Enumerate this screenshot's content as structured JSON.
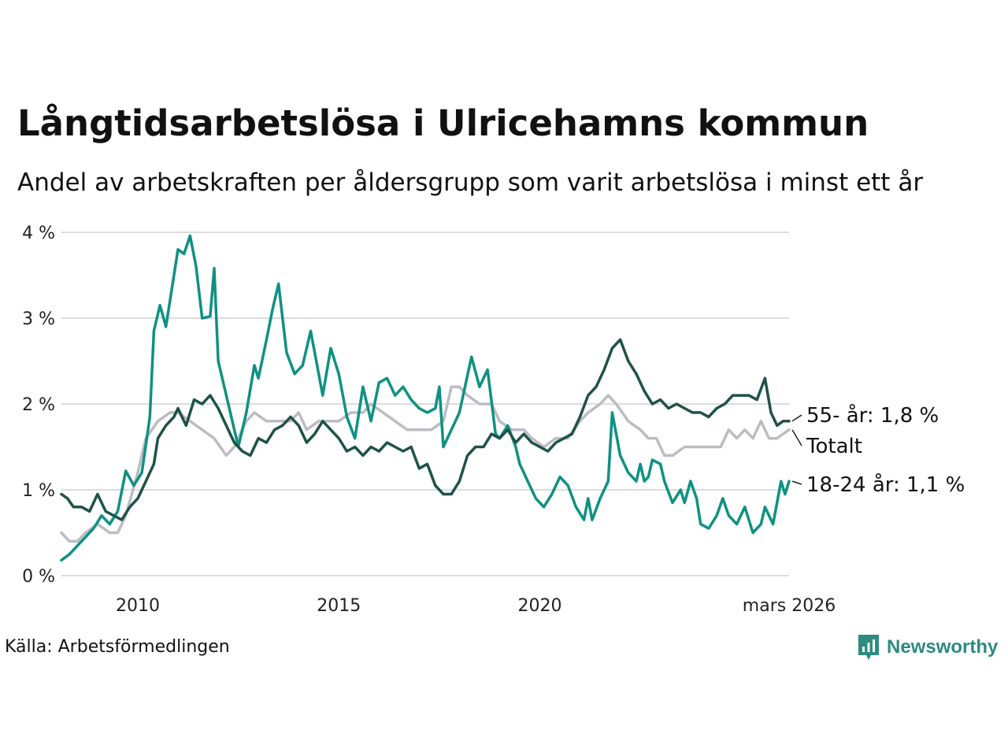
{
  "header": {
    "title": "Långtidsarbetslösa i Ulricehamns kommun",
    "subtitle": "Andel av arbetskraften per åldersgrupp som varit arbetslösa i minst ett år"
  },
  "footer": {
    "source": "Källa: Arbetsförmedlingen",
    "brand": "Newsworthy"
  },
  "chart_data": {
    "type": "line",
    "title": "Långtidsarbetslösa i Ulricehamns kommun",
    "subtitle": "Andel av arbetskraften per åldersgrupp som varit arbetslösa i minst ett år",
    "xlabel": "",
    "ylabel": "",
    "x_range": [
      2008.1,
      2026.2
    ],
    "ylim": [
      0,
      4
    ],
    "y_ticks": [
      0,
      1,
      2,
      3,
      4
    ],
    "y_tick_labels": [
      "0 %",
      "1 %",
      "2 %",
      "3 %",
      "4 %"
    ],
    "x_ticks": [
      2010,
      2015,
      2020,
      2026.2
    ],
    "x_tick_labels": [
      "2010",
      "2015",
      "2020",
      "mars 2026"
    ],
    "grid": true,
    "series": [
      {
        "name": "Totalt",
        "label": "Totalt",
        "color": "#bdbcc4",
        "points": [
          [
            2008.1,
            0.5
          ],
          [
            2008.3,
            0.4
          ],
          [
            2008.5,
            0.4
          ],
          [
            2008.7,
            0.5
          ],
          [
            2009.0,
            0.6
          ],
          [
            2009.3,
            0.5
          ],
          [
            2009.5,
            0.5
          ],
          [
            2009.7,
            0.7
          ],
          [
            2010.0,
            1.2
          ],
          [
            2010.2,
            1.6
          ],
          [
            2010.5,
            1.8
          ],
          [
            2010.8,
            1.9
          ],
          [
            2011.0,
            1.9
          ],
          [
            2011.3,
            1.8
          ],
          [
            2011.6,
            1.7
          ],
          [
            2011.9,
            1.6
          ],
          [
            2012.2,
            1.4
          ],
          [
            2012.4,
            1.5
          ],
          [
            2012.7,
            1.8
          ],
          [
            2012.9,
            1.9
          ],
          [
            2013.2,
            1.8
          ],
          [
            2013.5,
            1.8
          ],
          [
            2013.8,
            1.8
          ],
          [
            2014.0,
            1.9
          ],
          [
            2014.2,
            1.7
          ],
          [
            2014.5,
            1.8
          ],
          [
            2014.8,
            1.8
          ],
          [
            2015.0,
            1.8
          ],
          [
            2015.3,
            1.9
          ],
          [
            2015.6,
            1.9
          ],
          [
            2015.8,
            2.0
          ],
          [
            2016.1,
            1.9
          ],
          [
            2016.4,
            1.8
          ],
          [
            2016.7,
            1.7
          ],
          [
            2017.0,
            1.7
          ],
          [
            2017.3,
            1.7
          ],
          [
            2017.6,
            1.8
          ],
          [
            2017.8,
            2.2
          ],
          [
            2018.0,
            2.2
          ],
          [
            2018.2,
            2.1
          ],
          [
            2018.5,
            2.0
          ],
          [
            2018.8,
            2.0
          ],
          [
            2019.0,
            1.8
          ],
          [
            2019.3,
            1.7
          ],
          [
            2019.6,
            1.7
          ],
          [
            2019.8,
            1.6
          ],
          [
            2020.1,
            1.5
          ],
          [
            2020.4,
            1.6
          ],
          [
            2020.7,
            1.6
          ],
          [
            2021.0,
            1.8
          ],
          [
            2021.2,
            1.9
          ],
          [
            2021.5,
            2.0
          ],
          [
            2021.7,
            2.1
          ],
          [
            2021.9,
            2.0
          ],
          [
            2022.2,
            1.8
          ],
          [
            2022.5,
            1.7
          ],
          [
            2022.7,
            1.6
          ],
          [
            2022.9,
            1.6
          ],
          [
            2023.1,
            1.4
          ],
          [
            2023.3,
            1.4
          ],
          [
            2023.6,
            1.5
          ],
          [
            2023.9,
            1.5
          ],
          [
            2024.2,
            1.5
          ],
          [
            2024.5,
            1.5
          ],
          [
            2024.7,
            1.7
          ],
          [
            2024.9,
            1.6
          ],
          [
            2025.1,
            1.7
          ],
          [
            2025.3,
            1.6
          ],
          [
            2025.5,
            1.8
          ],
          [
            2025.7,
            1.6
          ],
          [
            2025.9,
            1.6
          ],
          [
            2026.2,
            1.7
          ]
        ]
      },
      {
        "name": "18-24 år",
        "label": "18-24 år: 1,1 %",
        "color": "#0f9182",
        "points": [
          [
            2008.1,
            0.18
          ],
          [
            2008.3,
            0.25
          ],
          [
            2008.6,
            0.4
          ],
          [
            2008.9,
            0.55
          ],
          [
            2009.1,
            0.7
          ],
          [
            2009.3,
            0.6
          ],
          [
            2009.5,
            0.75
          ],
          [
            2009.7,
            1.22
          ],
          [
            2009.9,
            1.05
          ],
          [
            2010.1,
            1.2
          ],
          [
            2010.3,
            1.85
          ],
          [
            2010.4,
            2.85
          ],
          [
            2010.55,
            3.15
          ],
          [
            2010.7,
            2.9
          ],
          [
            2010.8,
            3.2
          ],
          [
            2011.0,
            3.8
          ],
          [
            2011.15,
            3.75
          ],
          [
            2011.3,
            3.96
          ],
          [
            2011.45,
            3.6
          ],
          [
            2011.6,
            3.0
          ],
          [
            2011.8,
            3.02
          ],
          [
            2011.9,
            3.58
          ],
          [
            2012.0,
            2.5
          ],
          [
            2012.15,
            2.2
          ],
          [
            2012.35,
            1.8
          ],
          [
            2012.5,
            1.5
          ],
          [
            2012.7,
            1.9
          ],
          [
            2012.9,
            2.45
          ],
          [
            2013.0,
            2.3
          ],
          [
            2013.2,
            2.75
          ],
          [
            2013.35,
            3.1
          ],
          [
            2013.5,
            3.4
          ],
          [
            2013.7,
            2.6
          ],
          [
            2013.9,
            2.35
          ],
          [
            2014.1,
            2.45
          ],
          [
            2014.3,
            2.85
          ],
          [
            2014.5,
            2.35
          ],
          [
            2014.6,
            2.1
          ],
          [
            2014.8,
            2.65
          ],
          [
            2015.0,
            2.35
          ],
          [
            2015.2,
            1.85
          ],
          [
            2015.4,
            1.6
          ],
          [
            2015.5,
            1.9
          ],
          [
            2015.6,
            2.2
          ],
          [
            2015.8,
            1.8
          ],
          [
            2016.0,
            2.25
          ],
          [
            2016.2,
            2.3
          ],
          [
            2016.4,
            2.1
          ],
          [
            2016.6,
            2.2
          ],
          [
            2016.8,
            2.05
          ],
          [
            2017.0,
            1.95
          ],
          [
            2017.2,
            1.9
          ],
          [
            2017.4,
            1.95
          ],
          [
            2017.5,
            2.2
          ],
          [
            2017.6,
            1.5
          ],
          [
            2017.8,
            1.7
          ],
          [
            2018.0,
            1.9
          ],
          [
            2018.3,
            2.55
          ],
          [
            2018.5,
            2.2
          ],
          [
            2018.7,
            2.4
          ],
          [
            2018.9,
            1.65
          ],
          [
            2019.0,
            1.6
          ],
          [
            2019.2,
            1.75
          ],
          [
            2019.4,
            1.5
          ],
          [
            2019.5,
            1.3
          ],
          [
            2019.7,
            1.1
          ],
          [
            2019.9,
            0.9
          ],
          [
            2020.1,
            0.8
          ],
          [
            2020.3,
            0.95
          ],
          [
            2020.5,
            1.15
          ],
          [
            2020.7,
            1.05
          ],
          [
            2020.9,
            0.8
          ],
          [
            2021.1,
            0.65
          ],
          [
            2021.2,
            0.9
          ],
          [
            2021.3,
            0.65
          ],
          [
            2021.5,
            0.9
          ],
          [
            2021.7,
            1.1
          ],
          [
            2021.8,
            1.9
          ],
          [
            2022.0,
            1.4
          ],
          [
            2022.2,
            1.2
          ],
          [
            2022.4,
            1.1
          ],
          [
            2022.5,
            1.3
          ],
          [
            2022.6,
            1.1
          ],
          [
            2022.7,
            1.15
          ],
          [
            2022.8,
            1.35
          ],
          [
            2023.0,
            1.3
          ],
          [
            2023.1,
            1.1
          ],
          [
            2023.3,
            0.85
          ],
          [
            2023.5,
            1.0
          ],
          [
            2023.6,
            0.85
          ],
          [
            2023.75,
            1.1
          ],
          [
            2023.9,
            0.9
          ],
          [
            2024.0,
            0.6
          ],
          [
            2024.2,
            0.55
          ],
          [
            2024.4,
            0.7
          ],
          [
            2024.55,
            0.9
          ],
          [
            2024.7,
            0.7
          ],
          [
            2024.9,
            0.6
          ],
          [
            2025.1,
            0.8
          ],
          [
            2025.3,
            0.5
          ],
          [
            2025.5,
            0.6
          ],
          [
            2025.6,
            0.8
          ],
          [
            2025.8,
            0.6
          ],
          [
            2025.9,
            0.85
          ],
          [
            2026.0,
            1.1
          ],
          [
            2026.1,
            0.95
          ],
          [
            2026.2,
            1.1
          ]
        ]
      },
      {
        "name": "55- år",
        "label": "55- år: 1,8 %",
        "color": "#1e5248",
        "points": [
          [
            2008.1,
            0.95
          ],
          [
            2008.25,
            0.9
          ],
          [
            2008.4,
            0.8
          ],
          [
            2008.6,
            0.8
          ],
          [
            2008.8,
            0.75
          ],
          [
            2009.0,
            0.95
          ],
          [
            2009.2,
            0.75
          ],
          [
            2009.4,
            0.7
          ],
          [
            2009.6,
            0.65
          ],
          [
            2009.8,
            0.8
          ],
          [
            2010.0,
            0.9
          ],
          [
            2010.2,
            1.1
          ],
          [
            2010.4,
            1.3
          ],
          [
            2010.5,
            1.6
          ],
          [
            2010.7,
            1.75
          ],
          [
            2010.9,
            1.85
          ],
          [
            2011.0,
            1.95
          ],
          [
            2011.2,
            1.75
          ],
          [
            2011.4,
            2.05
          ],
          [
            2011.6,
            2.0
          ],
          [
            2011.8,
            2.1
          ],
          [
            2012.0,
            1.95
          ],
          [
            2012.2,
            1.75
          ],
          [
            2012.4,
            1.55
          ],
          [
            2012.6,
            1.45
          ],
          [
            2012.8,
            1.4
          ],
          [
            2013.0,
            1.6
          ],
          [
            2013.2,
            1.55
          ],
          [
            2013.4,
            1.7
          ],
          [
            2013.6,
            1.75
          ],
          [
            2013.8,
            1.85
          ],
          [
            2014.0,
            1.75
          ],
          [
            2014.2,
            1.55
          ],
          [
            2014.4,
            1.65
          ],
          [
            2014.6,
            1.8
          ],
          [
            2014.8,
            1.7
          ],
          [
            2015.0,
            1.6
          ],
          [
            2015.2,
            1.45
          ],
          [
            2015.4,
            1.5
          ],
          [
            2015.6,
            1.4
          ],
          [
            2015.8,
            1.5
          ],
          [
            2016.0,
            1.45
          ],
          [
            2016.2,
            1.55
          ],
          [
            2016.4,
            1.5
          ],
          [
            2016.6,
            1.45
          ],
          [
            2016.8,
            1.5
          ],
          [
            2017.0,
            1.25
          ],
          [
            2017.2,
            1.3
          ],
          [
            2017.4,
            1.05
          ],
          [
            2017.6,
            0.95
          ],
          [
            2017.8,
            0.95
          ],
          [
            2018.0,
            1.1
          ],
          [
            2018.2,
            1.4
          ],
          [
            2018.4,
            1.5
          ],
          [
            2018.6,
            1.5
          ],
          [
            2018.8,
            1.65
          ],
          [
            2019.0,
            1.6
          ],
          [
            2019.2,
            1.7
          ],
          [
            2019.4,
            1.55
          ],
          [
            2019.6,
            1.65
          ],
          [
            2019.8,
            1.55
          ],
          [
            2020.0,
            1.5
          ],
          [
            2020.2,
            1.45
          ],
          [
            2020.4,
            1.55
          ],
          [
            2020.6,
            1.6
          ],
          [
            2020.8,
            1.65
          ],
          [
            2021.0,
            1.85
          ],
          [
            2021.2,
            2.1
          ],
          [
            2021.4,
            2.2
          ],
          [
            2021.6,
            2.4
          ],
          [
            2021.8,
            2.65
          ],
          [
            2022.0,
            2.75
          ],
          [
            2022.2,
            2.5
          ],
          [
            2022.4,
            2.35
          ],
          [
            2022.6,
            2.15
          ],
          [
            2022.8,
            2.0
          ],
          [
            2023.0,
            2.05
          ],
          [
            2023.2,
            1.95
          ],
          [
            2023.4,
            2.0
          ],
          [
            2023.6,
            1.95
          ],
          [
            2023.8,
            1.9
          ],
          [
            2024.0,
            1.9
          ],
          [
            2024.2,
            1.85
          ],
          [
            2024.4,
            1.95
          ],
          [
            2024.6,
            2.0
          ],
          [
            2024.8,
            2.1
          ],
          [
            2025.0,
            2.1
          ],
          [
            2025.2,
            2.1
          ],
          [
            2025.4,
            2.05
          ],
          [
            2025.6,
            2.3
          ],
          [
            2025.75,
            1.9
          ],
          [
            2025.9,
            1.75
          ],
          [
            2026.05,
            1.8
          ],
          [
            2026.2,
            1.8
          ]
        ]
      }
    ],
    "end_labels": [
      "55- år: 1,8 %",
      "Totalt",
      "18-24 år: 1,1 %"
    ]
  }
}
